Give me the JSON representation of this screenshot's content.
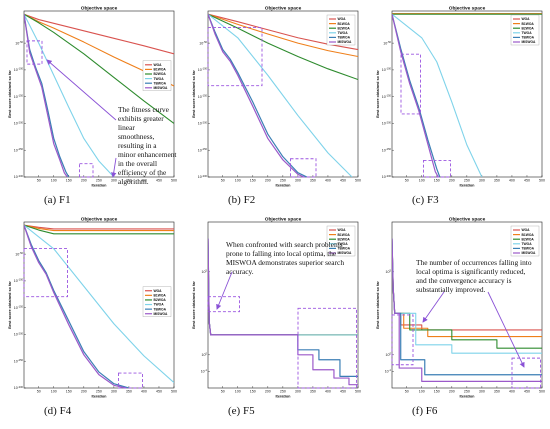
{
  "figure": {
    "legend_labels": [
      "WOA",
      "B1WOA",
      "B2WOA",
      "TWOA",
      "TBWOA",
      "MISWOA"
    ],
    "colors": {
      "WOA": "#d9534f",
      "B1WOA": "#ef7f1a",
      "B2WOA": "#2e8b2e",
      "TWOA": "#7fd3ea",
      "TBWOA": "#3b7fb5",
      "MISWOA": "#9b59c9",
      "highlight_box": "#9b55e0",
      "arrow": "#8a52d6"
    },
    "x_ticks": [
      "50",
      "100",
      "150",
      "200",
      "250",
      "300",
      "350",
      "400",
      "450",
      "500"
    ],
    "annotations": {
      "F1": "The fitness curve exhibits greater linear smoothness, resulting in a minor enhancement in the overall efficiency of the algorithm.",
      "F5": "When confronted with search problems prone to falling into local optima, the MISWOA demonstrates superior search accuracy.",
      "F6": "The number of occurrences falling into local optima is significantly reduced, and the convergence accuracy is substantially improved."
    }
  },
  "chart_data": [
    {
      "type": "line",
      "id": "F1",
      "caption": "(a) F1",
      "title": "Objective space",
      "xlabel": "Iteration",
      "ylabel": "Best score obtained so far",
      "xlim": [
        1,
        500
      ],
      "ylog": true,
      "ylim_exp": [
        -300,
        10
      ],
      "y_ticks": [
        "10^-50",
        "10^-100",
        "10^-150",
        "10^-200",
        "10^-250",
        "10^-300"
      ],
      "y_tick_values": [
        -50,
        -100,
        -150,
        -200,
        -250,
        -300
      ],
      "series": [
        {
          "name": "WOA",
          "x": [
            1,
            50,
            100,
            200,
            300,
            400,
            500
          ],
          "y": [
            4,
            -6,
            -13,
            -27,
            -41,
            -55,
            -70
          ]
        },
        {
          "name": "B1WOA",
          "x": [
            1,
            50,
            100,
            200,
            300,
            400,
            500
          ],
          "y": [
            4,
            -10,
            -22,
            -48,
            -76,
            -102,
            -130
          ]
        },
        {
          "name": "B2WOA",
          "x": [
            1,
            50,
            100,
            200,
            300,
            400,
            500
          ],
          "y": [
            4,
            -12,
            -30,
            -70,
            -114,
            -158,
            -200
          ]
        },
        {
          "name": "TWOA",
          "x": [
            1,
            50,
            100,
            150,
            200,
            250,
            300
          ],
          "y": [
            4,
            -50,
            -110,
            -170,
            -228,
            -270,
            -300
          ]
        },
        {
          "name": "TBWOA",
          "x": [
            1,
            20,
            40,
            60,
            80,
            100,
            120,
            140,
            150
          ],
          "y": [
            4,
            -62,
            -96,
            -125,
            -175,
            -228,
            -262,
            -290,
            -300
          ]
        },
        {
          "name": "MISWOA",
          "x": [
            1,
            20,
            40,
            60,
            80,
            100,
            120,
            135,
            145
          ],
          "y": [
            4,
            -68,
            -100,
            -132,
            -185,
            -238,
            -268,
            -292,
            -300
          ]
        }
      ]
    },
    {
      "type": "line",
      "id": "F2",
      "caption": "(b) F2",
      "title": "Objective space",
      "xlabel": "Iteration",
      "ylabel": "Best score obtained so far",
      "xlim": [
        1,
        500
      ],
      "ylog": true,
      "ylim_exp": [
        -300,
        10
      ],
      "y_ticks": [
        "10^-50",
        "10^-100",
        "10^-150",
        "10^-200",
        "10^-250",
        "10^-300"
      ],
      "y_tick_values": [
        -50,
        -100,
        -150,
        -200,
        -250,
        -300
      ],
      "series": [
        {
          "name": "WOA",
          "x": [
            1,
            100,
            200,
            300,
            400,
            500
          ],
          "y": [
            4,
            -10,
            -25,
            -40,
            -52,
            -62
          ]
        },
        {
          "name": "B1WOA",
          "x": [
            1,
            100,
            200,
            300,
            400,
            500
          ],
          "y": [
            4,
            -15,
            -33,
            -50,
            -64,
            -75
          ]
        },
        {
          "name": "B2WOA",
          "x": [
            1,
            100,
            200,
            300,
            400,
            500
          ],
          "y": [
            4,
            -22,
            -50,
            -75,
            -98,
            -118
          ]
        },
        {
          "name": "TWOA",
          "x": [
            1,
            100,
            200,
            300,
            400,
            480
          ],
          "y": [
            4,
            -40,
            -110,
            -185,
            -255,
            -300
          ]
        },
        {
          "name": "TBWOA",
          "x": [
            1,
            25,
            50,
            75,
            100,
            150,
            200,
            250,
            300,
            330
          ],
          "y": [
            4,
            -30,
            -62,
            -80,
            -105,
            -160,
            -220,
            -262,
            -292,
            -300
          ]
        },
        {
          "name": "MISWOA",
          "x": [
            1,
            25,
            50,
            75,
            100,
            150,
            200,
            250,
            300,
            320
          ],
          "y": [
            4,
            -34,
            -66,
            -84,
            -110,
            -168,
            -228,
            -268,
            -295,
            -300
          ]
        }
      ]
    },
    {
      "type": "line",
      "id": "F3",
      "caption": "(c) F3",
      "title": "Objective space",
      "xlabel": "Iteration",
      "ylabel": "Best score obtained so far",
      "xlim": [
        1,
        500
      ],
      "ylog": true,
      "ylim_exp": [
        -300,
        10
      ],
      "y_ticks": [
        "10^-50",
        "10^-100",
        "10^-150",
        "10^-200",
        "10^-250",
        "10^-300"
      ],
      "y_tick_values": [
        -50,
        -100,
        -150,
        -200,
        -250,
        -300
      ],
      "series": [
        {
          "name": "WOA",
          "x": [
            1,
            500
          ],
          "y": [
            5,
            5
          ]
        },
        {
          "name": "B1WOA",
          "x": [
            1,
            500
          ],
          "y": [
            5,
            5
          ]
        },
        {
          "name": "B2WOA",
          "x": [
            1,
            500
          ],
          "y": [
            4,
            4
          ]
        },
        {
          "name": "TWOA",
          "x": [
            1,
            100,
            150,
            200,
            250,
            300
          ],
          "y": [
            4,
            -40,
            -85,
            -160,
            -240,
            -300
          ]
        },
        {
          "name": "TBWOA",
          "x": [
            1,
            30,
            60,
            90,
            120,
            150,
            160
          ],
          "y": [
            4,
            -60,
            -120,
            -170,
            -230,
            -285,
            -300
          ]
        },
        {
          "name": "MISWOA",
          "x": [
            1,
            30,
            60,
            90,
            120,
            145,
            155
          ],
          "y": [
            4,
            -66,
            -126,
            -176,
            -238,
            -290,
            -300
          ]
        }
      ]
    },
    {
      "type": "line",
      "id": "F4",
      "caption": "(d) F4",
      "title": "Objective space",
      "xlabel": "Iteration",
      "ylabel": "Best score obtained so far",
      "xlim": [
        1,
        500
      ],
      "ylog": true,
      "ylim_exp": [
        -300,
        10
      ],
      "y_ticks": [
        "10^-50",
        "10^-100",
        "10^-150",
        "10^-200",
        "10^-250",
        "10^-300"
      ],
      "y_tick_values": [
        -50,
        -100,
        -150,
        -200,
        -250,
        -300
      ],
      "series": [
        {
          "name": "WOA",
          "x": [
            1,
            50,
            100,
            500
          ],
          "y": [
            4,
            0,
            -3,
            -3
          ]
        },
        {
          "name": "B1WOA",
          "x": [
            1,
            50,
            100,
            500
          ],
          "y": [
            4,
            -2,
            -6,
            -6
          ]
        },
        {
          "name": "B2WOA",
          "x": [
            1,
            50,
            100,
            500
          ],
          "y": [
            4,
            -5,
            -12,
            -12
          ]
        },
        {
          "name": "TWOA",
          "x": [
            1,
            100,
            200,
            300,
            400,
            500
          ],
          "y": [
            4,
            -40,
            -110,
            -180,
            -240,
            -290
          ]
        },
        {
          "name": "TBWOA",
          "x": [
            1,
            25,
            50,
            75,
            100,
            150,
            200,
            250,
            300,
            350
          ],
          "y": [
            4,
            -32,
            -62,
            -85,
            -118,
            -175,
            -232,
            -270,
            -292,
            -300
          ]
        },
        {
          "name": "MISWOA",
          "x": [
            1,
            25,
            50,
            75,
            100,
            150,
            200,
            250,
            300,
            340
          ],
          "y": [
            4,
            -36,
            -66,
            -88,
            -122,
            -182,
            -238,
            -275,
            -295,
            -300
          ]
        }
      ]
    },
    {
      "type": "line",
      "id": "F5",
      "caption": "(e) F5",
      "title": "Objective space",
      "xlabel": "Iteration",
      "ylabel": "Best score obtained so far",
      "xlim": [
        1,
        500
      ],
      "ylog": true,
      "ylim_exp": [
        -2,
        8
      ],
      "y_ticks": [
        "10^5",
        "10^0",
        "10^-1"
      ],
      "y_tick_values": [
        5,
        0,
        -1
      ],
      "series": [
        {
          "name": "WOA",
          "x": [
            1,
            5,
            10,
            500
          ],
          "y": [
            7,
            2,
            1.2,
            1.2
          ]
        },
        {
          "name": "B1WOA",
          "x": [
            1,
            5,
            10,
            500
          ],
          "y": [
            7,
            2,
            1.2,
            1.2
          ]
        },
        {
          "name": "B2WOA",
          "x": [
            1,
            5,
            10,
            500
          ],
          "y": [
            7,
            2,
            1.2,
            1.2
          ]
        },
        {
          "name": "TWOA",
          "x": [
            1,
            5,
            10,
            500
          ],
          "y": [
            7,
            2,
            1.2,
            1.2
          ]
        },
        {
          "name": "TBWOA",
          "x": [
            1,
            5,
            10,
            300,
            300,
            370,
            370,
            440,
            440,
            500
          ],
          "y": [
            7,
            2,
            1.2,
            1.2,
            0.3,
            0.3,
            -0.3,
            -0.3,
            -1.3,
            -1.3
          ]
        },
        {
          "name": "MISWOA",
          "x": [
            1,
            5,
            10,
            300,
            300,
            350,
            350,
            420,
            420,
            470,
            470,
            500
          ],
          "y": [
            7,
            2,
            1.2,
            1.2,
            0,
            0,
            -0.9,
            -0.9,
            -1.4,
            -1.4,
            -1.8,
            -1.8
          ]
        }
      ]
    },
    {
      "type": "line",
      "id": "F6",
      "caption": "(f) F6",
      "title": "Objective space",
      "xlabel": "Iteration",
      "ylabel": "Best score obtained so far",
      "xlim": [
        1,
        500
      ],
      "ylog": true,
      "ylim_exp": [
        -2,
        8
      ],
      "y_ticks": [
        "10^5",
        "10^0",
        "10^-1"
      ],
      "y_tick_values": [
        5,
        0,
        -1
      ],
      "series": [
        {
          "name": "WOA",
          "x": [
            1,
            5,
            10,
            30,
            30,
            100,
            100,
            500
          ],
          "y": [
            7,
            4,
            2.5,
            2.5,
            1.8,
            1.8,
            1.5,
            1.5
          ]
        },
        {
          "name": "B1WOA",
          "x": [
            1,
            5,
            10,
            40,
            40,
            120,
            120,
            500
          ],
          "y": [
            7,
            4,
            2.5,
            2.5,
            1.6,
            1.6,
            1.1,
            1.1
          ]
        },
        {
          "name": "B2WOA",
          "x": [
            1,
            5,
            10,
            60,
            60,
            200,
            200,
            350,
            350,
            500
          ],
          "y": [
            7,
            4,
            2.5,
            2.5,
            1.5,
            1.5,
            0.9,
            0.9,
            0.4,
            0.4
          ]
        },
        {
          "name": "TWOA",
          "x": [
            1,
            5,
            10,
            80,
            80,
            200,
            200,
            500
          ],
          "y": [
            7,
            4,
            2.5,
            2.5,
            0.6,
            0.6,
            0.1,
            0.1
          ]
        },
        {
          "name": "TBWOA",
          "x": [
            1,
            5,
            10,
            30,
            30,
            110,
            110,
            500
          ],
          "y": [
            7,
            4,
            2.5,
            2.5,
            -0.3,
            -0.3,
            -1.2,
            -1.2
          ]
        },
        {
          "name": "MISWOA",
          "x": [
            1,
            5,
            10,
            25,
            25,
            100,
            100,
            500
          ],
          "y": [
            7,
            4,
            2.5,
            2.5,
            -0.8,
            -0.8,
            -1.6,
            -1.6
          ]
        }
      ]
    }
  ]
}
